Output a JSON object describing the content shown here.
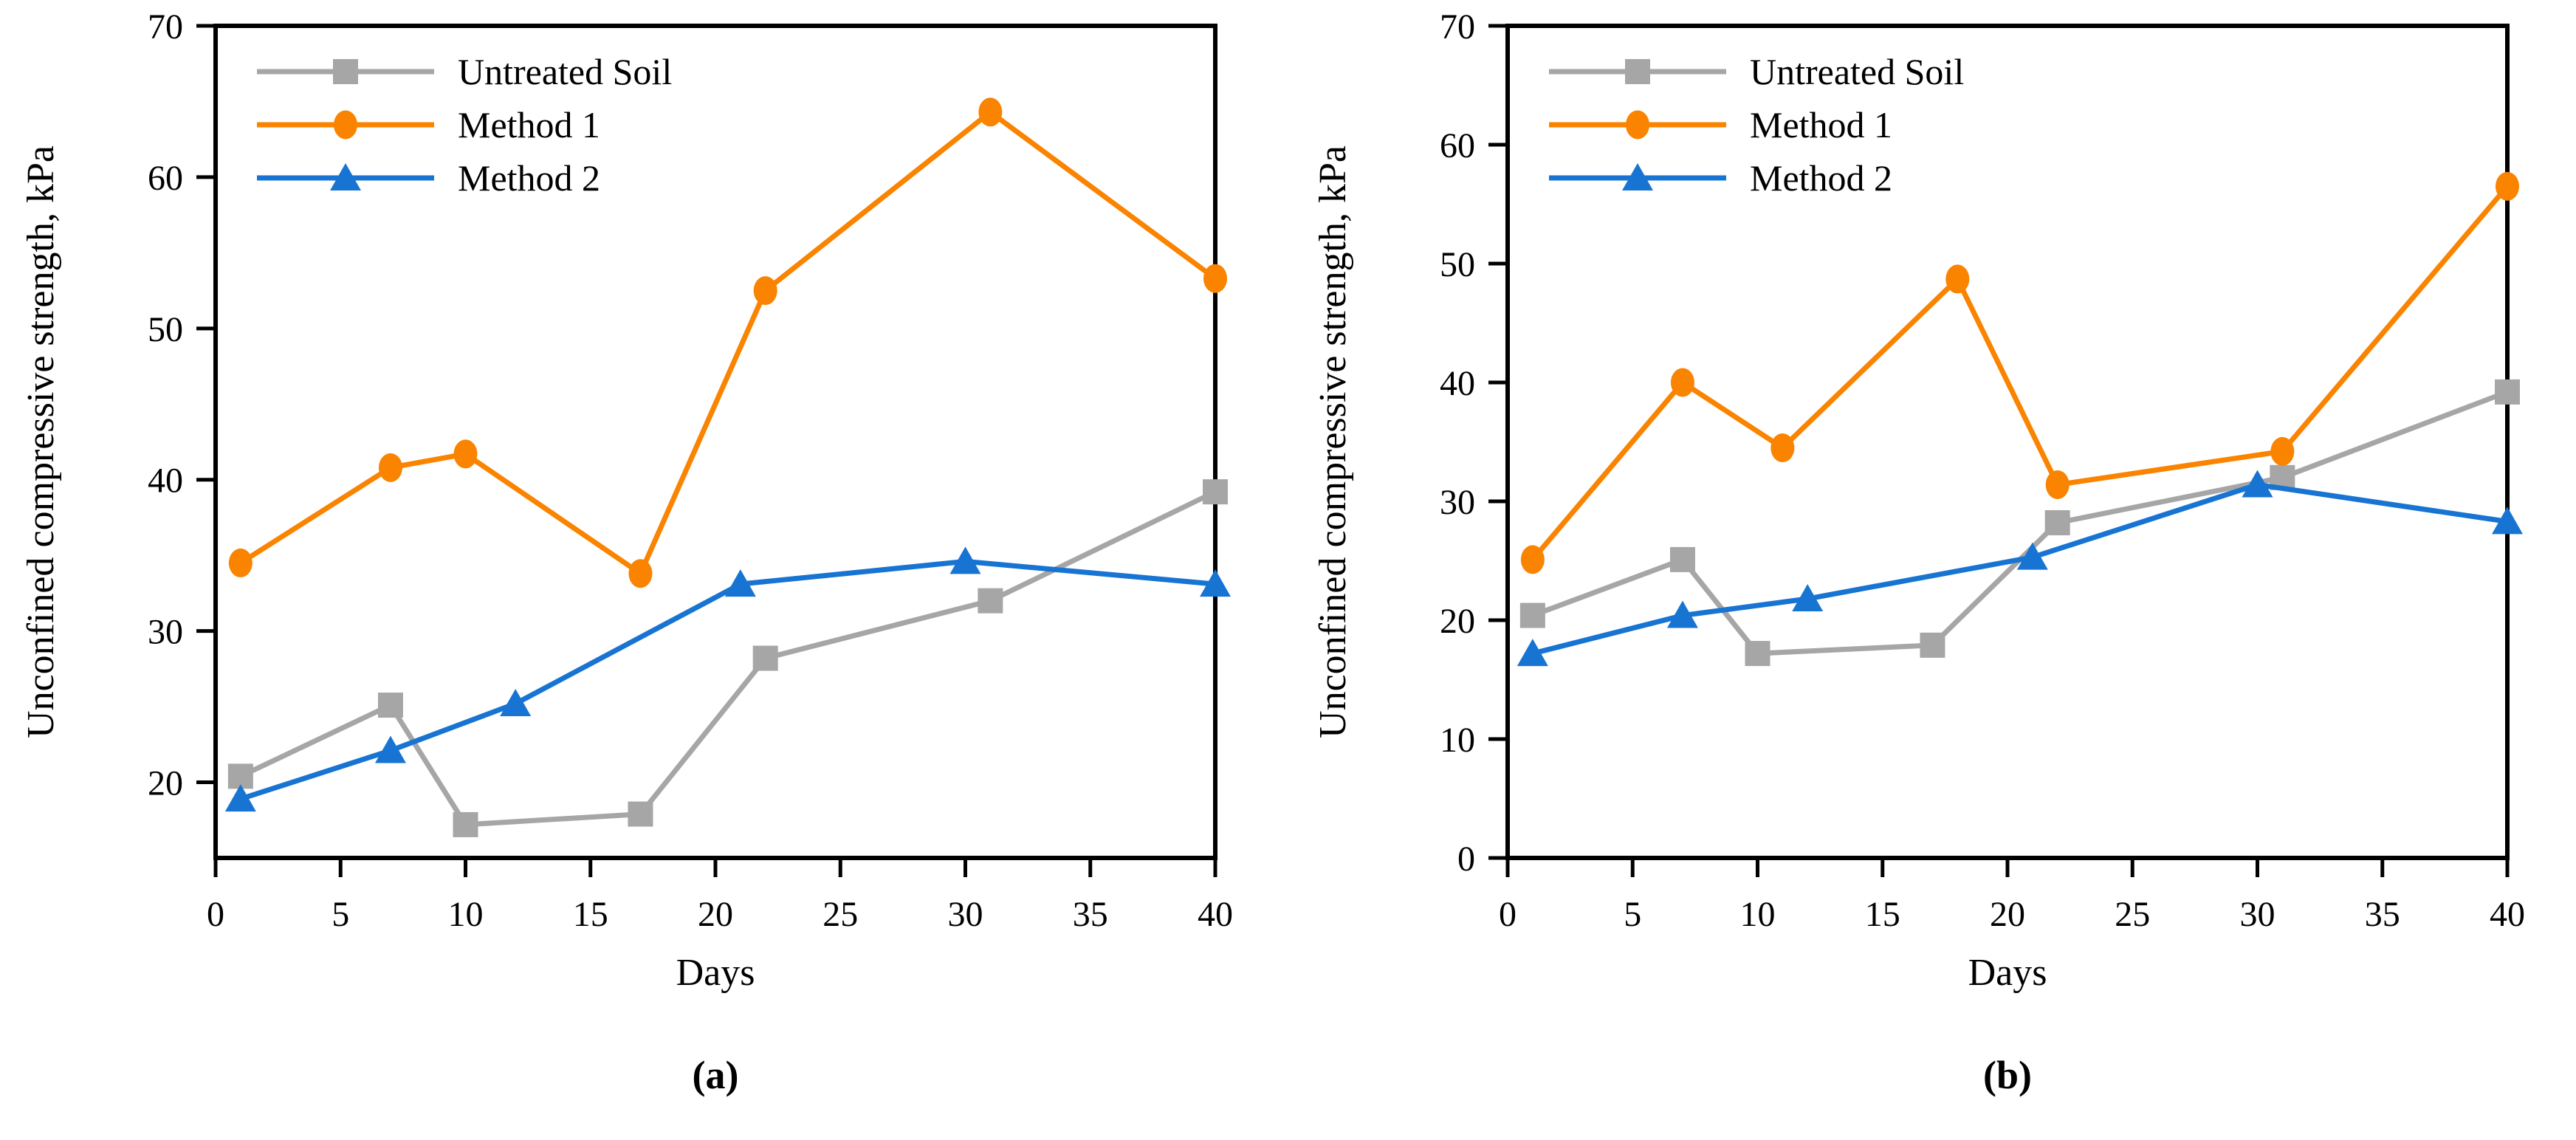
{
  "figure": {
    "background": "#FFFFFF",
    "text_color": "#000000",
    "panel_labels": [
      "(a)",
      "(b)"
    ]
  },
  "chart_data": [
    {
      "type": "line",
      "panel_label": "(a)",
      "xlabel": "Days",
      "ylabel": "Unconfined compressive strength, kPa",
      "xlim": [
        0,
        40
      ],
      "xticks": [
        0,
        5,
        10,
        15,
        20,
        25,
        30,
        35,
        40
      ],
      "ylim": [
        15,
        70
      ],
      "yticks": [
        20,
        30,
        40,
        50,
        60,
        70
      ],
      "grid": false,
      "legend_position": "top-left",
      "legend": [
        "Untreated Soil",
        "Method 1",
        "Method 2"
      ],
      "series": [
        {
          "name": "Untreated Soil",
          "color": "#A6A6A6",
          "marker": "square",
          "points": [
            [
              1,
              20.4
            ],
            [
              7,
              25.1
            ],
            [
              10,
              17.2
            ],
            [
              17,
              17.9
            ],
            [
              22,
              28.2
            ],
            [
              31,
              32.0
            ],
            [
              40,
              39.2
            ]
          ]
        },
        {
          "name": "Method 1",
          "color": "#FA8300",
          "marker": "circle",
          "points": [
            [
              1,
              34.5
            ],
            [
              7,
              40.8
            ],
            [
              10,
              41.7
            ],
            [
              17,
              33.8
            ],
            [
              22,
              52.5
            ],
            [
              31,
              64.3
            ],
            [
              40,
              53.3
            ]
          ]
        },
        {
          "name": "Method 2",
          "color": "#1874D2",
          "marker": "triangle",
          "points": [
            [
              1,
              18.9
            ],
            [
              7,
              22.1
            ],
            [
              12,
              25.2
            ],
            [
              21,
              33.1
            ],
            [
              30,
              34.6
            ],
            [
              40,
              33.1
            ]
          ]
        }
      ]
    },
    {
      "type": "line",
      "panel_label": "(b)",
      "xlabel": "Days",
      "ylabel": "Unconfined compressive strength, kPa",
      "xlim": [
        0,
        40
      ],
      "xticks": [
        0,
        5,
        10,
        15,
        20,
        25,
        30,
        35,
        40
      ],
      "ylim": [
        0,
        70
      ],
      "yticks": [
        0,
        10,
        20,
        30,
        40,
        50,
        60,
        70
      ],
      "grid": false,
      "legend_position": "top-left",
      "legend": [
        "Untreated Soil",
        "Method 1",
        "Method 2"
      ],
      "series": [
        {
          "name": "Untreated Soil",
          "color": "#A6A6A6",
          "marker": "square",
          "points": [
            [
              1,
              20.4
            ],
            [
              7,
              25.1
            ],
            [
              10,
              17.2
            ],
            [
              17,
              17.9
            ],
            [
              22,
              28.2
            ],
            [
              31,
              32.0
            ],
            [
              40,
              39.2
            ]
          ]
        },
        {
          "name": "Method 1",
          "color": "#FA8300",
          "marker": "circle",
          "points": [
            [
              1,
              25.1
            ],
            [
              7,
              40.0
            ],
            [
              11,
              34.5
            ],
            [
              18,
              48.7
            ],
            [
              22,
              31.4
            ],
            [
              31,
              34.2
            ],
            [
              40,
              56.5
            ]
          ]
        },
        {
          "name": "Method 2",
          "color": "#1874D2",
          "marker": "triangle",
          "points": [
            [
              1,
              17.2
            ],
            [
              7,
              20.4
            ],
            [
              12,
              21.8
            ],
            [
              21,
              25.3
            ],
            [
              30,
              31.4
            ],
            [
              40,
              28.3
            ]
          ]
        }
      ]
    }
  ]
}
